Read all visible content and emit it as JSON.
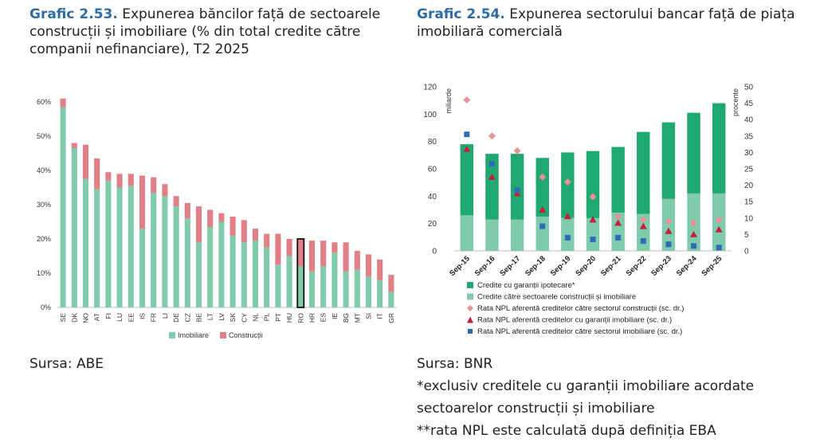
{
  "left": {
    "title_num": "Grafic 2.53.",
    "title_text": "Expunerea băncilor față de sectoarele construcții și imobiliare (% din total credite către companii nefinanciare), T2 2025",
    "source": "Sursa:  ABE"
  },
  "right": {
    "title_num": "Grafic 2.54.",
    "title_text": "Expunerea sectorului bancar față de piața imobiliară comercială",
    "source": "Sursa:   BNR",
    "notes": [
      "*exclusiv creditele cu garanții imobiliare acordate",
      "sectoarelor construcții și imobiliare",
      "**rata NPL este calculată după definiția EBA"
    ]
  },
  "colors": {
    "green_dark": "#1fa86f",
    "green_light": "#7fcbab",
    "pink": "#e07f86",
    "diamond": "#e79198",
    "triangle": "#c41e3a",
    "square": "#2e6bb5",
    "title_blue": "#2e6da4"
  },
  "chart_data": [
    {
      "type": "bar",
      "stacked": true,
      "ylim": [
        0,
        60
      ],
      "yticks": [
        "0%",
        "10%",
        "20%",
        "30%",
        "40%",
        "50%",
        "60%"
      ],
      "categories": [
        "SE",
        "DK",
        "NO",
        "AT",
        "FI",
        "LU",
        "EE",
        "IS",
        "FR",
        "LI",
        "DE",
        "CZ",
        "BE",
        "LT",
        "LV",
        "SK",
        "CY",
        "NL",
        "PL",
        "PT",
        "HU",
        "RO",
        "HR",
        "ES",
        "IE",
        "BG",
        "MT",
        "SI",
        "IT",
        "GR"
      ],
      "highlight": "RO",
      "series": [
        {
          "name": "Imobiliare",
          "values": [
            58.5,
            46.5,
            37.5,
            34.5,
            37.0,
            35.0,
            35.5,
            23.0,
            33.5,
            32.5,
            29.5,
            26.0,
            19.0,
            23.5,
            25.0,
            21.0,
            19.0,
            19.5,
            17.5,
            12.5,
            15.0,
            12.0,
            10.5,
            12.0,
            16.0,
            10.5,
            11.0,
            9.0,
            8.0,
            4.5
          ]
        },
        {
          "name": "Construcții",
          "values": [
            2.5,
            1.5,
            10.0,
            9.0,
            2.5,
            4.0,
            3.5,
            15.5,
            4.5,
            3.5,
            3.0,
            4.5,
            10.5,
            5.0,
            2.5,
            5.5,
            6.5,
            3.5,
            4.0,
            9.0,
            5.0,
            8.0,
            9.0,
            7.5,
            3.0,
            8.5,
            5.5,
            6.5,
            6.0,
            5.0
          ]
        }
      ],
      "legend": [
        "Imobiliare",
        "Construcții"
      ]
    },
    {
      "type": "bar+scatter",
      "stacked": true,
      "categories": [
        "Sep-15",
        "Sep-16",
        "Sep-17",
        "Sep-18",
        "Sep-19",
        "Sep-20",
        "Sep-21",
        "Sep-22",
        "Sep-23",
        "Sep-24",
        "Sep-25"
      ],
      "ylabel": "miliarde",
      "y2label": "procente",
      "ylim": [
        0,
        120
      ],
      "y2lim": [
        0,
        50
      ],
      "yticks": [
        "0",
        "20",
        "40",
        "60",
        "80",
        "100",
        "120"
      ],
      "y2ticks": [
        "0",
        "5",
        "10",
        "15",
        "20",
        "25",
        "30",
        "35",
        "40",
        "45",
        "50"
      ],
      "series": [
        {
          "name": "Credite cu garanții ipotecare*",
          "values": [
            52,
            48,
            48,
            43,
            48,
            49,
            48,
            60,
            56,
            59,
            66
          ]
        },
        {
          "name": "Credite către sectoarele construcții și imobiliare",
          "values": [
            26,
            23,
            23,
            25,
            24,
            24,
            28,
            27,
            38,
            42,
            42
          ]
        },
        {
          "name": "Rata NPL aferentă creditelor către sectorul construcții (sc. dr.)",
          "axis": "right",
          "values": [
            46,
            35,
            30.5,
            22.5,
            21,
            16.5,
            10.5,
            9.5,
            9,
            8.5,
            9.5
          ]
        },
        {
          "name": "Rata NPL aferentă creditelor cu garanții imobiliare (sc. dr.)",
          "axis": "right",
          "values": [
            31,
            22.5,
            17.5,
            12.5,
            10.5,
            9.5,
            8.5,
            7.5,
            6,
            5,
            6.5
          ]
        },
        {
          "name": "Rata NPL aferentă creditelor către sectorul imobiliare (sc. dr.)",
          "axis": "right",
          "values": [
            35.5,
            26.5,
            18.5,
            7.5,
            4,
            3.5,
            4,
            3,
            2,
            1.5,
            1
          ]
        }
      ],
      "legend": [
        "Credite cu garanții ipotecare*",
        "Credite către sectoarele construcții și imobiliare",
        "Rata NPL aferentă creditelor către sectorul construcții (sc. dr.)",
        "Rata NPL aferentă creditelor cu garanții imobiliare (sc. dr.)",
        "Rata NPL aferentă creditelor către sectorul imobiliare (sc. dr.)"
      ]
    }
  ]
}
